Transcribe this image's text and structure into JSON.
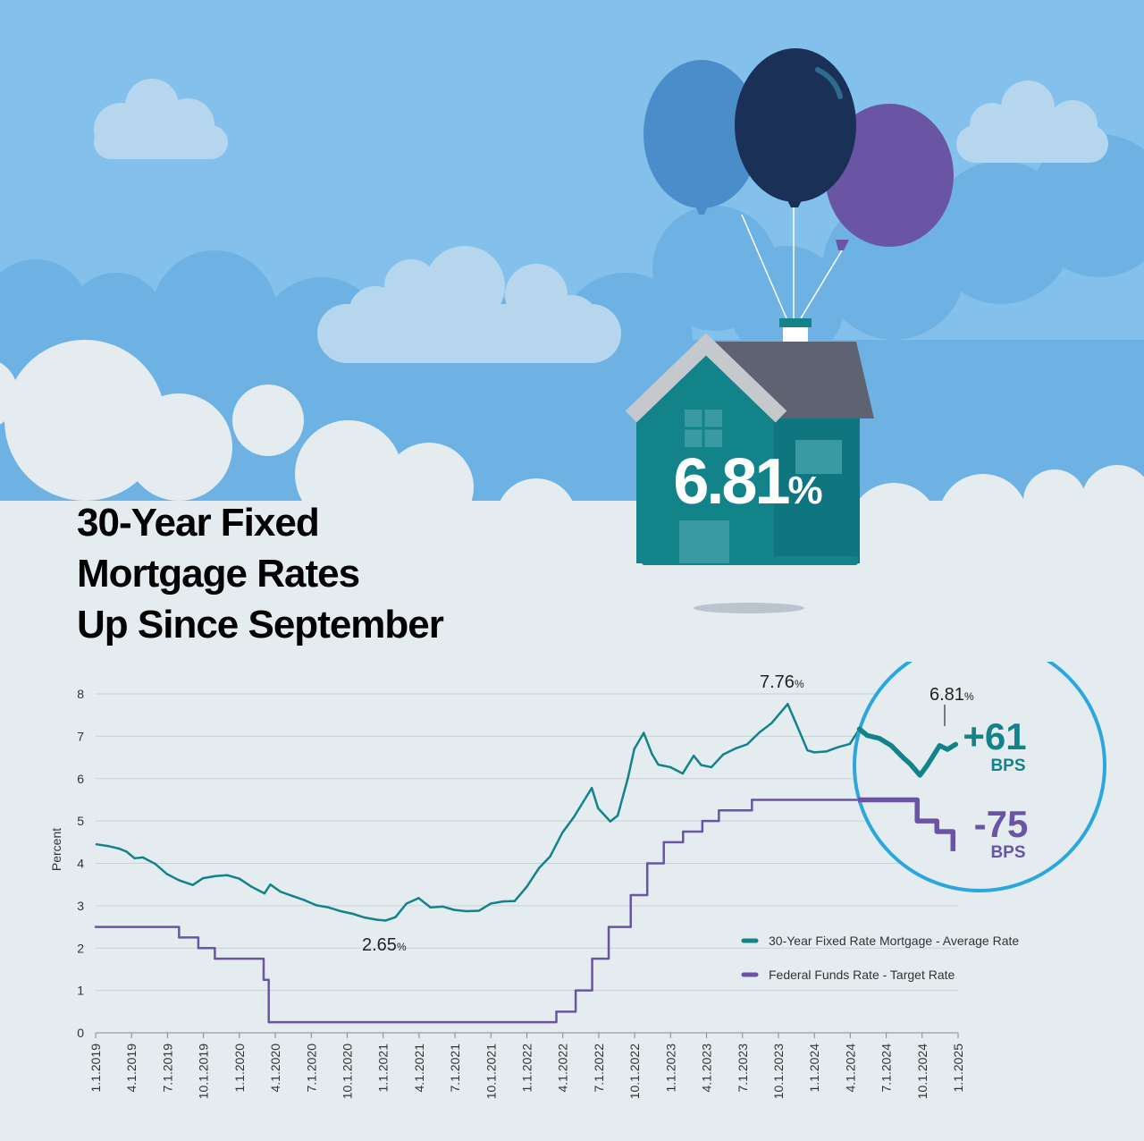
{
  "title_lines": [
    "30-Year Fixed",
    "Mortgage Rates",
    "Up Since September"
  ],
  "house_rate": {
    "value": "6.81",
    "unit": "%"
  },
  "colors": {
    "sky": "#7dbde9",
    "cloud": "#e4ecf0",
    "mortgage_line": "#13838a",
    "fed_line": "#6a55a5",
    "highlight_circle": "#2aa7dd",
    "house_body": "#13838a",
    "roof": "#5f6270",
    "balloon_light_blue": "#4b8ccb",
    "balloon_navy": "#1a3057",
    "balloon_purple": "#6a55a5"
  },
  "chart_data": {
    "type": "line",
    "ylabel": "Percent",
    "ylim": [
      0,
      8
    ],
    "yticks": [
      "0",
      "1",
      "2",
      "3",
      "4",
      "5",
      "6",
      "7",
      "8"
    ],
    "xlim": [
      "2019-01-01",
      "2025-01-01"
    ],
    "xtick_labels": [
      "1.1.2019",
      "4.1.2019",
      "7.1.2019",
      "10.1.2019",
      "1.1.2020",
      "4.1.2020",
      "7.1.2020",
      "10.1.2020",
      "1.1.2021",
      "4.1.2021",
      "7.1.2021",
      "10.1.2021",
      "1.1.2022",
      "4.1.2022",
      "7.1.2022",
      "10.1.2022",
      "1.1.2023",
      "4.1.2023",
      "7.1.2023",
      "10.1.2023",
      "1.1.2024",
      "4.1.2024",
      "7.1.2024",
      "10.1.2024",
      "1.1.2025"
    ],
    "grid": true,
    "legend_position": "bottom-right",
    "series": [
      {
        "name": "30-Year Fixed Rate Mortgage - Average Rate",
        "color": "#13838a",
        "x": [
          "2019-01-03",
          "2019-02-01",
          "2019-03-01",
          "2019-03-20",
          "2019-04-10",
          "2019-05-01",
          "2019-06-01",
          "2019-07-01",
          "2019-08-01",
          "2019-09-05",
          "2019-10-01",
          "2019-11-01",
          "2019-12-01",
          "2020-01-01",
          "2020-02-01",
          "2020-03-05",
          "2020-03-20",
          "2020-04-15",
          "2020-05-15",
          "2020-06-15",
          "2020-07-15",
          "2020-08-15",
          "2020-09-15",
          "2020-10-15",
          "2020-11-15",
          "2020-12-15",
          "2021-01-07",
          "2021-02-01",
          "2021-03-01",
          "2021-04-01",
          "2021-05-01",
          "2021-06-01",
          "2021-07-01",
          "2021-08-01",
          "2021-09-01",
          "2021-10-01",
          "2021-11-01",
          "2021-12-01",
          "2022-01-01",
          "2022-02-01",
          "2022-03-01",
          "2022-04-01",
          "2022-05-01",
          "2022-06-15",
          "2022-07-01",
          "2022-08-01",
          "2022-08-20",
          "2022-09-15",
          "2022-10-01",
          "2022-10-25",
          "2022-11-15",
          "2022-12-01",
          "2023-01-01",
          "2023-02-01",
          "2023-03-01",
          "2023-03-20",
          "2023-04-15",
          "2023-05-15",
          "2023-06-15",
          "2023-07-15",
          "2023-08-15",
          "2023-09-15",
          "2023-10-26",
          "2023-11-20",
          "2023-12-15",
          "2024-01-01",
          "2024-02-01",
          "2024-03-01",
          "2024-04-01",
          "2024-04-25",
          "2024-05-15",
          "2024-06-15",
          "2024-07-15",
          "2024-08-15",
          "2024-09-01",
          "2024-09-26",
          "2024-10-15",
          "2024-11-15",
          "2024-12-05",
          "2024-12-26"
        ],
        "y": [
          4.45,
          4.41,
          4.35,
          4.28,
          4.12,
          4.14,
          3.99,
          3.75,
          3.6,
          3.49,
          3.65,
          3.7,
          3.72,
          3.64,
          3.45,
          3.29,
          3.5,
          3.33,
          3.23,
          3.13,
          3.01,
          2.96,
          2.87,
          2.81,
          2.72,
          2.67,
          2.65,
          2.73,
          3.05,
          3.18,
          2.96,
          2.98,
          2.9,
          2.87,
          2.88,
          3.05,
          3.1,
          3.11,
          3.45,
          3.89,
          4.16,
          4.72,
          5.1,
          5.78,
          5.3,
          4.99,
          5.13,
          6.02,
          6.7,
          7.08,
          6.58,
          6.33,
          6.27,
          6.12,
          6.54,
          6.32,
          6.27,
          6.57,
          6.71,
          6.81,
          7.09,
          7.31,
          7.76,
          7.22,
          6.67,
          6.62,
          6.64,
          6.74,
          6.82,
          7.17,
          7.02,
          6.95,
          6.78,
          6.49,
          6.35,
          6.08,
          6.32,
          6.78,
          6.69,
          6.81
        ]
      },
      {
        "name": "Federal Funds Rate - Target Rate",
        "color": "#6a55a5",
        "x": [
          "2019-01-01",
          "2019-08-01",
          "2019-09-19",
          "2019-10-31",
          "2020-03-03",
          "2020-03-16",
          "2022-03-17",
          "2022-05-05",
          "2022-06-16",
          "2022-07-28",
          "2022-09-22",
          "2022-11-03",
          "2022-12-15",
          "2023-02-02",
          "2023-03-23",
          "2023-05-04",
          "2023-07-27",
          "2024-09-19",
          "2024-11-08",
          "2024-12-19"
        ],
        "y": [
          2.5,
          2.25,
          2.0,
          1.75,
          1.25,
          0.25,
          0.5,
          1.0,
          1.75,
          2.5,
          3.25,
          4.0,
          4.5,
          4.75,
          5.0,
          5.25,
          5.5,
          5.0,
          4.75,
          4.5
        ]
      }
    ],
    "annotations": [
      {
        "value": "2.65",
        "unit": "%"
      },
      {
        "value": "7.76",
        "unit": "%"
      },
      {
        "value": "6.81",
        "unit": "%"
      },
      {
        "value": "+61",
        "unit": "BPS"
      },
      {
        "value": "-75",
        "unit": "BPS"
      }
    ]
  }
}
